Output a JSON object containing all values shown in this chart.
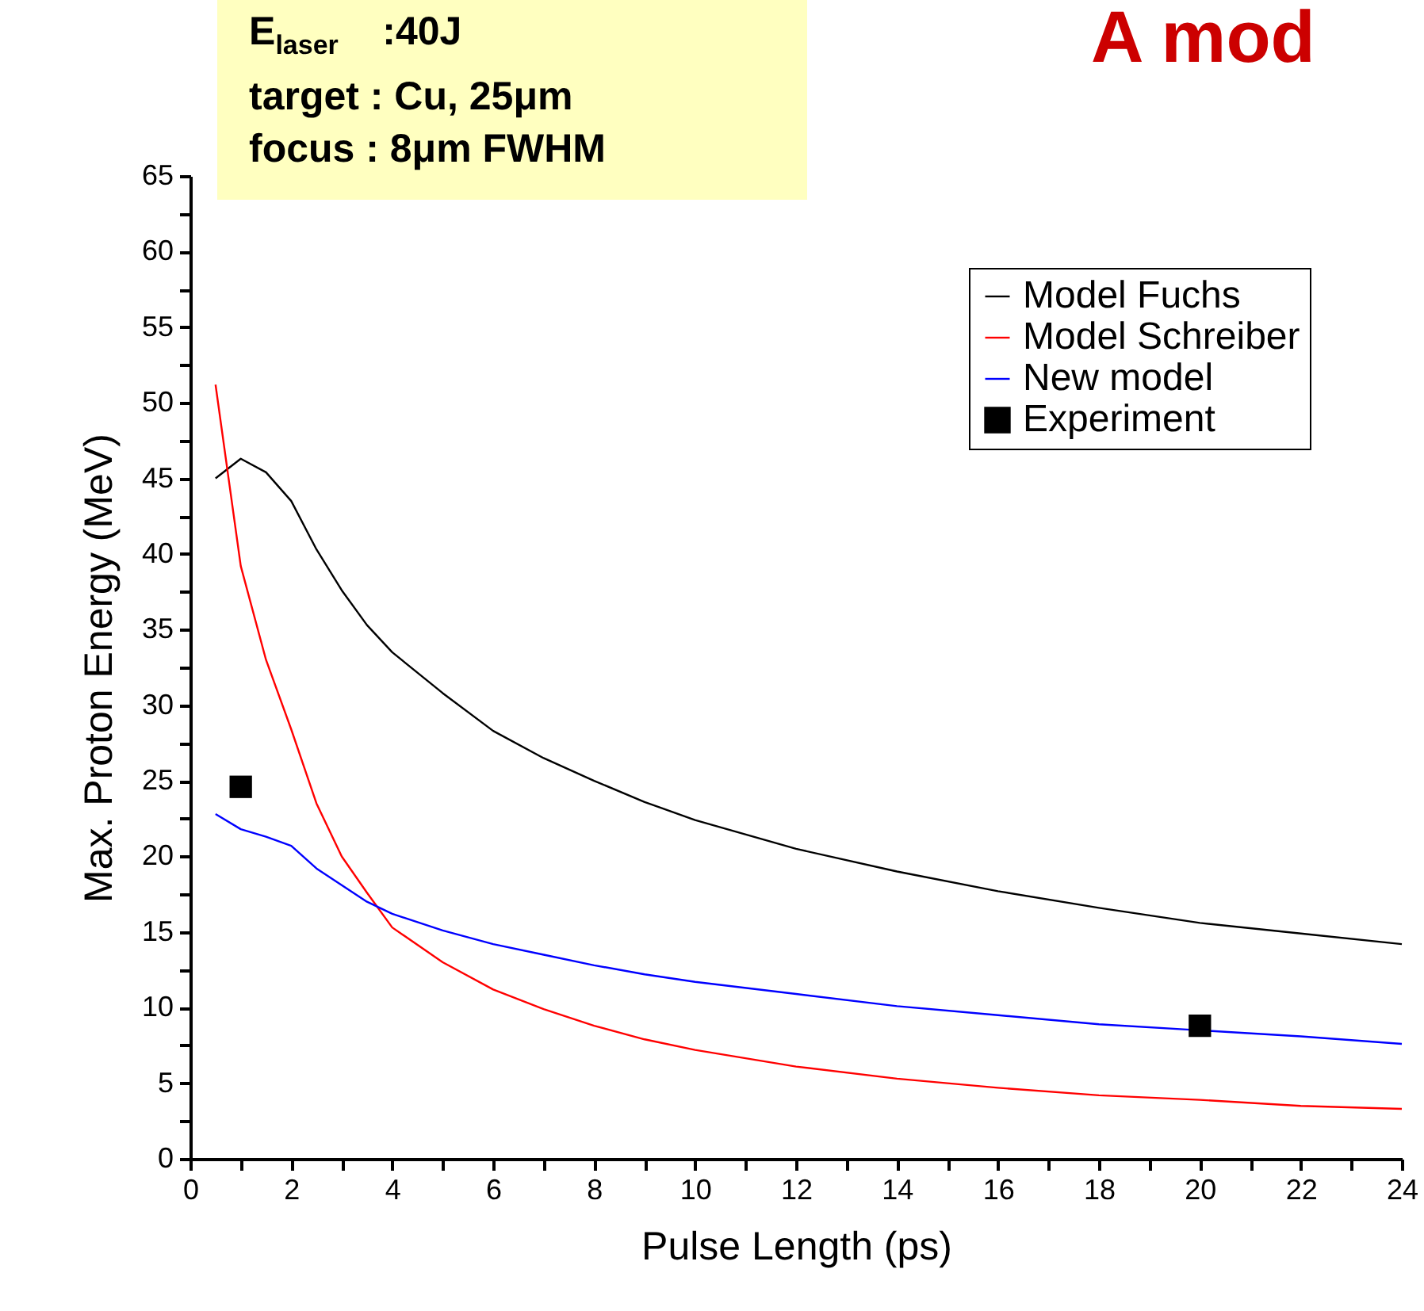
{
  "chart_data": {
    "type": "line",
    "title": "A mod",
    "xlabel": "Pulse Length (ps)",
    "ylabel": "Max. Proton Energy (MeV)",
    "annotations": [
      "E$_{laser}$    :40J",
      "target : Cu, 25μm",
      "focus : 8μm FWHM"
    ],
    "x": [
      0.5,
      1,
      1.5,
      2,
      2.5,
      3,
      3.5,
      4,
      5,
      6,
      7,
      8,
      9,
      10,
      12,
      14,
      16,
      18,
      20,
      22,
      24
    ],
    "series": [
      {
        "name": "Model Fuchs",
        "color": "#000000",
        "values": [
          45.0,
          46.3,
          45.4,
          43.5,
          40.3,
          37.6,
          35.3,
          33.5,
          30.8,
          28.3,
          26.5,
          25.0,
          23.6,
          22.4,
          20.5,
          19.0,
          17.7,
          16.6,
          15.6,
          14.9,
          14.2
        ]
      },
      {
        "name": "Model Schreiber",
        "color": "#ff0000",
        "values": [
          51.2,
          39.2,
          33.0,
          28.4,
          23.5,
          20.0,
          17.6,
          15.3,
          13.0,
          11.2,
          9.9,
          8.8,
          7.9,
          7.2,
          6.1,
          5.3,
          4.7,
          4.2,
          3.9,
          3.5,
          3.3
        ]
      },
      {
        "name": "New model",
        "color": "#0000ff",
        "values": [
          22.8,
          21.8,
          21.3,
          20.7,
          19.2,
          18.1,
          17.0,
          16.2,
          15.1,
          14.2,
          13.5,
          12.8,
          12.2,
          11.7,
          10.9,
          10.1,
          9.5,
          8.9,
          8.5,
          8.1,
          7.6
        ]
      },
      {
        "name": "Experiment",
        "type": "scatter",
        "color": "#000000",
        "marker": "square",
        "x": [
          1,
          20
        ],
        "values": [
          24.6,
          8.8
        ]
      }
    ],
    "xlim": [
      0,
      24
    ],
    "xticks": [
      0,
      {
        "value": 1,
        "label": null
      },
      2,
      {
        "value": 3,
        "label": null
      },
      4,
      {
        "value": 5,
        "label": null
      },
      6,
      {
        "value": 7,
        "label": null
      },
      8,
      {
        "value": 9,
        "label": null
      },
      10,
      {
        "value": 11,
        "label": null
      },
      12,
      {
        "value": 13,
        "label": null
      },
      14,
      {
        "value": 15,
        "label": null
      },
      16,
      {
        "value": 17,
        "label": null
      },
      18,
      {
        "value": 19,
        "label": null
      },
      20,
      {
        "value": 21,
        "label": null
      },
      22,
      {
        "value": 23,
        "label": null
      },
      24
    ],
    "ylim": [
      0,
      65
    ],
    "yticks": [
      0,
      {
        "value": 2.5,
        "label": null
      },
      5,
      {
        "value": 7.5,
        "label": null
      },
      10,
      {
        "value": 12.5,
        "label": null
      },
      15,
      {
        "value": 17.5,
        "label": null
      },
      20,
      {
        "value": 22.5,
        "label": null
      },
      25,
      {
        "value": 27.5,
        "label": null
      },
      30,
      {
        "value": 32.5,
        "label": null
      },
      35,
      {
        "value": 37.5,
        "label": null
      },
      40,
      {
        "value": 42.5,
        "label": null
      },
      45,
      {
        "value": 47.5,
        "label": null
      },
      50,
      {
        "value": 52.5,
        "label": null
      },
      55,
      {
        "value": 57.5,
        "label": null
      },
      60,
      {
        "value": 62.5,
        "label": null
      },
      65
    ],
    "grid": false,
    "legend": "top right",
    "line_style": "solid"
  }
}
